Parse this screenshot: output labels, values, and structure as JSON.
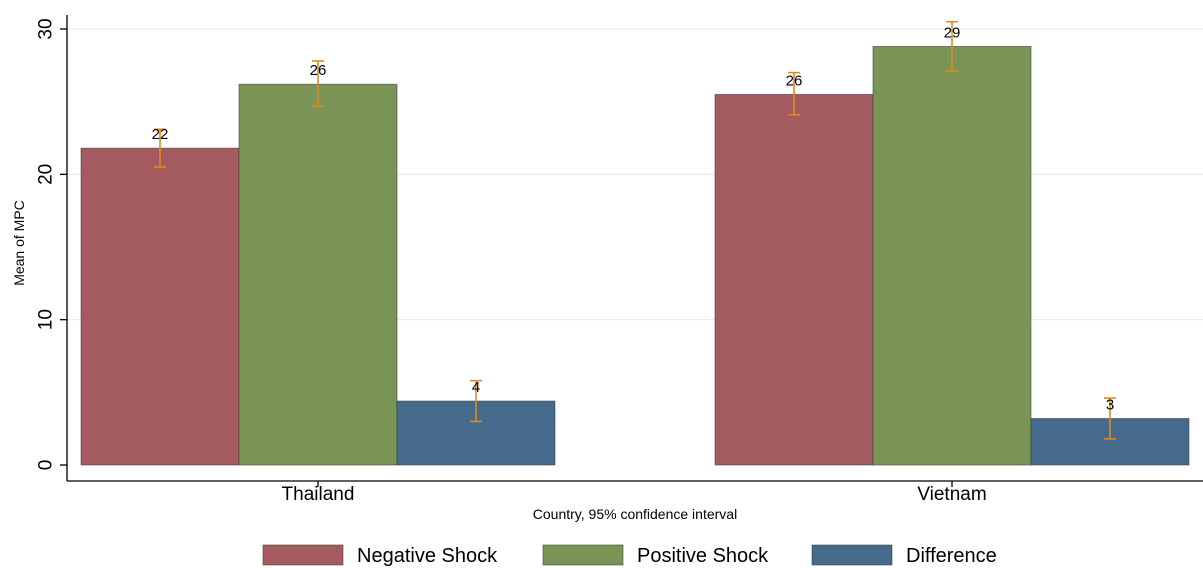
{
  "chart_data": {
    "type": "bar",
    "xlabel": "Country, 95% confidence interval",
    "ylabel": "Mean of MPC",
    "ylim": [
      0,
      30
    ],
    "yticks": [
      0,
      10,
      20,
      30
    ],
    "grid": true,
    "legend_position": "bottom",
    "categories": [
      "Thailand",
      "Vietnam"
    ],
    "series": [
      {
        "name": "Negative Shock",
        "color": "#a45b60",
        "values": [
          21.8,
          25.5
        ],
        "ci_low": [
          20.5,
          24.1
        ],
        "ci_high": [
          23.1,
          27.0
        ],
        "labels": [
          "22",
          "26"
        ]
      },
      {
        "name": "Positive Shock",
        "color": "#7a9456",
        "values": [
          26.2,
          28.8
        ],
        "ci_low": [
          24.7,
          27.1
        ],
        "ci_high": [
          27.8,
          30.5
        ],
        "labels": [
          "26",
          "29"
        ]
      },
      {
        "name": "Difference",
        "color": "#456a8c",
        "values": [
          4.4,
          3.2
        ],
        "ci_low": [
          3.0,
          1.8
        ],
        "ci_high": [
          5.8,
          4.6
        ],
        "labels": [
          "4",
          "3"
        ]
      }
    ],
    "error_bar_color": "#e08a1e"
  }
}
